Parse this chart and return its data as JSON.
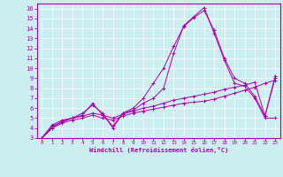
{
  "xlabel": "Windchill (Refroidissement éolien,°C)",
  "xlim": [
    -0.5,
    23.5
  ],
  "ylim": [
    3,
    16.5
  ],
  "xticks": [
    0,
    1,
    2,
    3,
    4,
    5,
    6,
    7,
    8,
    9,
    10,
    11,
    12,
    13,
    14,
    15,
    16,
    17,
    18,
    19,
    20,
    21,
    22,
    23
  ],
  "yticks": [
    3,
    4,
    5,
    6,
    7,
    8,
    9,
    10,
    11,
    12,
    13,
    14,
    15,
    16
  ],
  "bg_color": "#cceef0",
  "line_color": "#aa00aa",
  "lines": [
    {
      "x": [
        0,
        1,
        2,
        3,
        4,
        5,
        6,
        7,
        8,
        9,
        10,
        11,
        12,
        13,
        14,
        15,
        16,
        17,
        18,
        19,
        20,
        21,
        22,
        23
      ],
      "y": [
        3.0,
        4.0,
        4.5,
        4.8,
        5.0,
        5.3,
        5.0,
        4.8,
        5.2,
        5.5,
        5.7,
        5.9,
        6.1,
        6.3,
        6.5,
        6.6,
        6.7,
        6.9,
        7.2,
        7.5,
        7.8,
        8.1,
        8.5,
        8.8
      ]
    },
    {
      "x": [
        0,
        1,
        2,
        3,
        4,
        5,
        6,
        7,
        8,
        9,
        10,
        11,
        12,
        13,
        14,
        15,
        16,
        17,
        18,
        19,
        20,
        21,
        22,
        23
      ],
      "y": [
        3.0,
        4.2,
        4.6,
        5.0,
        5.2,
        5.5,
        5.3,
        5.0,
        5.4,
        5.7,
        6.0,
        6.2,
        6.5,
        6.8,
        7.0,
        7.2,
        7.4,
        7.6,
        7.9,
        8.1,
        8.3,
        8.6,
        5.2,
        9.0
      ]
    },
    {
      "x": [
        0,
        1,
        2,
        3,
        4,
        5,
        6,
        7,
        8,
        9,
        10,
        11,
        12,
        13,
        14,
        15,
        16,
        17,
        18,
        19,
        20,
        21,
        22,
        23
      ],
      "y": [
        3.0,
        4.0,
        4.7,
        5.0,
        5.3,
        6.5,
        5.3,
        4.2,
        5.5,
        6.0,
        7.0,
        8.5,
        10.0,
        12.2,
        14.2,
        15.1,
        15.8,
        13.8,
        11.0,
        9.0,
        8.5,
        7.2,
        5.2,
        9.2
      ]
    },
    {
      "x": [
        0,
        1,
        2,
        3,
        4,
        5,
        6,
        7,
        8,
        9,
        10,
        11,
        12,
        13,
        14,
        15,
        16,
        17,
        18,
        19,
        20,
        21,
        22,
        23
      ],
      "y": [
        3.0,
        4.3,
        4.8,
        5.0,
        5.5,
        6.3,
        5.5,
        4.0,
        5.5,
        5.8,
        6.5,
        7.0,
        8.0,
        11.5,
        14.3,
        15.2,
        16.1,
        13.5,
        10.8,
        8.5,
        8.2,
        7.0,
        5.0,
        5.0
      ]
    }
  ]
}
